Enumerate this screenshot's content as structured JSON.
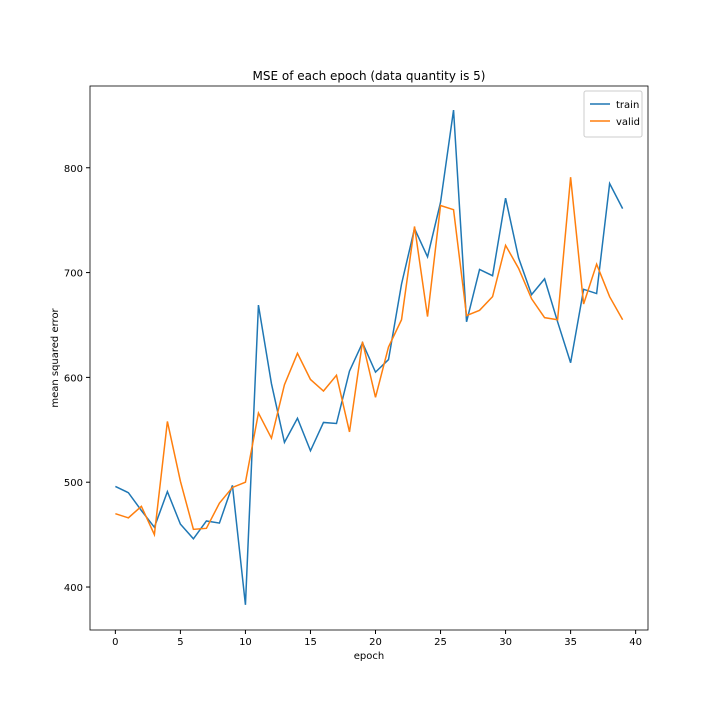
{
  "chart_data": {
    "type": "line",
    "title": "MSE of each epoch (data quantity is 5)",
    "xlabel": "epoch",
    "ylabel": "mean squared error",
    "x": [
      0,
      1,
      2,
      3,
      4,
      5,
      6,
      7,
      8,
      9,
      10,
      11,
      12,
      13,
      14,
      15,
      16,
      17,
      18,
      19,
      20,
      21,
      22,
      23,
      24,
      25,
      26,
      27,
      28,
      29,
      30,
      31,
      32,
      33,
      34,
      35,
      36,
      37,
      38,
      39
    ],
    "series": [
      {
        "name": "train",
        "color": "#1f77b4",
        "values": [
          496,
          490,
          473,
          457,
          491,
          460,
          446,
          463,
          461,
          497,
          383,
          669,
          594,
          538,
          561,
          530,
          557,
          556,
          606,
          633,
          605,
          617,
          689,
          742,
          715,
          767,
          855,
          653,
          703,
          697,
          771,
          714,
          679,
          694,
          653,
          614,
          684,
          680,
          785,
          761
        ]
      },
      {
        "name": "valid",
        "color": "#ff7f0e",
        "values": [
          470,
          466,
          477,
          450,
          558,
          501,
          455,
          456,
          480,
          495,
          500,
          566,
          542,
          593,
          623,
          598,
          587,
          602,
          548,
          634,
          581,
          629,
          655,
          744,
          658,
          764,
          760,
          659,
          664,
          677,
          726,
          704,
          675,
          657,
          655,
          791,
          670,
          708,
          677,
          655
        ]
      }
    ],
    "xlim": [
      -1.95,
      40.95
    ],
    "ylim": [
      359,
      878
    ],
    "xticks": [
      0,
      5,
      10,
      15,
      20,
      25,
      30,
      35,
      40
    ],
    "yticks": [
      400,
      500,
      600,
      700,
      800
    ],
    "legend": "upper right"
  }
}
